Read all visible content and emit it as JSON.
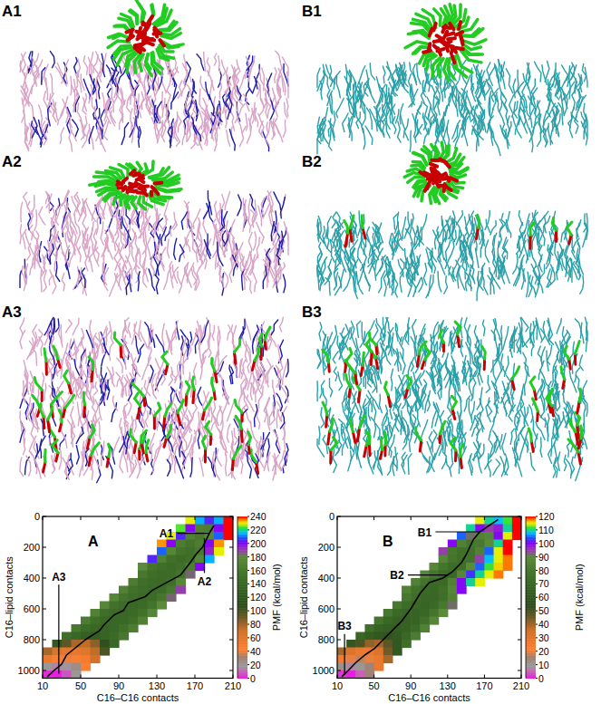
{
  "panels": [
    {
      "label": "A1"
    },
    {
      "label": "A2"
    },
    {
      "label": "A3"
    },
    {
      "label": "B1"
    },
    {
      "label": "B2"
    },
    {
      "label": "B3"
    }
  ],
  "chart_data": [
    {
      "type": "heatmap",
      "title": "A",
      "x_label": "C16–C16 contacts",
      "y_label": "C16–lipid contacts",
      "xlim": [
        10,
        210
      ],
      "ylim": [
        1050,
        0
      ],
      "xticks": [
        10,
        50,
        90,
        130,
        170,
        210
      ],
      "yticks": [
        0,
        200,
        400,
        600,
        800,
        1000
      ],
      "grid": false,
      "x_bins": [
        10,
        20,
        30,
        40,
        50,
        60,
        70,
        80,
        90,
        100,
        110,
        120,
        130,
        140,
        150,
        160,
        170,
        180,
        190,
        200,
        210
      ],
      "y_bins": [
        0,
        50,
        100,
        150,
        200,
        250,
        300,
        350,
        400,
        450,
        500,
        550,
        600,
        650,
        700,
        750,
        800,
        850,
        900,
        950,
        1000,
        1050
      ],
      "cells": [
        [
          null,
          null,
          null,
          null,
          null,
          null,
          null,
          null,
          null,
          null,
          null,
          null,
          null,
          null,
          null,
          230,
          215,
          205,
          215,
          240
        ],
        [
          null,
          null,
          null,
          null,
          null,
          null,
          null,
          null,
          null,
          null,
          null,
          null,
          null,
          null,
          225,
          200,
          170,
          165,
          200,
          240
        ],
        [
          null,
          null,
          null,
          null,
          null,
          null,
          null,
          null,
          null,
          null,
          null,
          null,
          null,
          230,
          205,
          170,
          160,
          175,
          210,
          240
        ],
        [
          null,
          null,
          null,
          null,
          null,
          null,
          null,
          null,
          null,
          null,
          null,
          null,
          235,
          200,
          165,
          155,
          165,
          200,
          235,
          null
        ],
        [
          null,
          null,
          null,
          null,
          null,
          null,
          null,
          null,
          null,
          null,
          null,
          null,
          210,
          175,
          155,
          150,
          160,
          195,
          230,
          null
        ],
        [
          null,
          null,
          null,
          null,
          null,
          null,
          null,
          null,
          null,
          null,
          null,
          205,
          170,
          150,
          145,
          150,
          175,
          215,
          null,
          null
        ],
        [
          null,
          null,
          null,
          null,
          null,
          null,
          null,
          null,
          null,
          null,
          180,
          155,
          148,
          145,
          148,
          165,
          200,
          null,
          null,
          null
        ],
        [
          null,
          null,
          null,
          null,
          null,
          null,
          null,
          null,
          null,
          null,
          160,
          148,
          145,
          146,
          155,
          185,
          null,
          null,
          null,
          null
        ],
        [
          null,
          null,
          null,
          null,
          null,
          null,
          null,
          null,
          null,
          165,
          150,
          145,
          144,
          150,
          175,
          null,
          null,
          null,
          null,
          null
        ],
        [
          null,
          null,
          null,
          null,
          null,
          null,
          null,
          null,
          170,
          152,
          146,
          144,
          146,
          160,
          190,
          null,
          null,
          null,
          null,
          null
        ],
        [
          null,
          null,
          null,
          null,
          null,
          null,
          null,
          175,
          155,
          147,
          144,
          146,
          158,
          185,
          null,
          null,
          null,
          null,
          null,
          null
        ],
        [
          null,
          null,
          null,
          null,
          null,
          null,
          175,
          152,
          146,
          143,
          145,
          155,
          180,
          null,
          null,
          null,
          null,
          null,
          null,
          null
        ],
        [
          null,
          null,
          null,
          null,
          null,
          170,
          150,
          145,
          142,
          144,
          152,
          175,
          null,
          null,
          null,
          null,
          null,
          null,
          null,
          null
        ],
        [
          null,
          null,
          null,
          null,
          165,
          148,
          143,
          140,
          143,
          150,
          170,
          null,
          null,
          null,
          null,
          null,
          null,
          null,
          null,
          null
        ],
        [
          null,
          null,
          null,
          160,
          146,
          140,
          138,
          142,
          150,
          165,
          null,
          null,
          null,
          null,
          null,
          null,
          null,
          null,
          null,
          null
        ],
        [
          null,
          null,
          150,
          140,
          130,
          128,
          135,
          145,
          160,
          null,
          null,
          null,
          null,
          null,
          null,
          null,
          null,
          null,
          null,
          null
        ],
        [
          null,
          120,
          95,
          80,
          75,
          85,
          110,
          140,
          null,
          null,
          null,
          null,
          null,
          null,
          null,
          null,
          null,
          null,
          null,
          null
        ],
        [
          80,
          65,
          60,
          58,
          62,
          75,
          100,
          null,
          null,
          null,
          null,
          null,
          null,
          null,
          null,
          null,
          null,
          null,
          null,
          null
        ],
        [
          55,
          45,
          40,
          42,
          50,
          70,
          null,
          null,
          null,
          null,
          null,
          null,
          null,
          null,
          null,
          null,
          null,
          null,
          null,
          null
        ],
        [
          20,
          15,
          18,
          25,
          45,
          null,
          null,
          null,
          null,
          null,
          null,
          null,
          null,
          null,
          null,
          null,
          null,
          null,
          null,
          null
        ],
        [
          2,
          0,
          8,
          20,
          null,
          null,
          null,
          null,
          null,
          null,
          null,
          null,
          null,
          null,
          null,
          null,
          null,
          null,
          null,
          null
        ]
      ],
      "colorbar": {
        "label": "PMF (kcal/mol)",
        "range": [
          0,
          240
        ],
        "ticks": [
          0,
          20,
          40,
          60,
          80,
          100,
          120,
          140,
          160,
          180,
          200,
          220,
          240
        ]
      },
      "path": {
        "color": "#000000",
        "x": [
          190,
          186,
          182,
          178,
          172,
          165,
          155,
          140,
          125,
          118,
          100,
          95,
          85,
          75,
          70,
          55,
          45,
          35,
          30,
          22,
          15
        ],
        "y": [
          60,
          100,
          150,
          200,
          240,
          300,
          380,
          430,
          480,
          520,
          560,
          610,
          640,
          700,
          740,
          800,
          850,
          900,
          960,
          1000,
          1040
        ]
      },
      "annotations": [
        {
          "text": "A1",
          "x": 185,
          "y": 110,
          "text_x": 140,
          "text_y": 110
        },
        {
          "text": "A2",
          "x": 180,
          "y": 140,
          "text_x": 180,
          "text_y": 420
        },
        {
          "text": "A3",
          "x": 27,
          "y": 1020,
          "text_x": 27,
          "text_y": 390
        }
      ]
    },
    {
      "type": "heatmap",
      "title": "B",
      "x_label": "C16–C16 contacts",
      "y_label": "C16–lipid contacts",
      "xlim": [
        10,
        210
      ],
      "ylim": [
        1050,
        0
      ],
      "xticks": [
        10,
        50,
        90,
        130,
        170,
        210
      ],
      "yticks": [
        0,
        200,
        400,
        600,
        800,
        1000
      ],
      "grid": false,
      "x_bins": [
        10,
        20,
        30,
        40,
        50,
        60,
        70,
        80,
        90,
        100,
        110,
        120,
        130,
        140,
        150,
        160,
        170,
        180,
        190,
        200,
        210
      ],
      "y_bins": [
        0,
        50,
        100,
        150,
        200,
        250,
        300,
        350,
        400,
        450,
        500,
        550,
        600,
        650,
        700,
        750,
        800,
        850,
        900,
        950,
        1000,
        1050
      ],
      "cells": [
        [
          null,
          null,
          null,
          null,
          null,
          null,
          null,
          null,
          null,
          null,
          null,
          null,
          null,
          null,
          null,
          115,
          110,
          108,
          112,
          120
        ],
        [
          null,
          null,
          null,
          null,
          null,
          null,
          null,
          null,
          null,
          null,
          null,
          null,
          null,
          null,
          110,
          100,
          95,
          98,
          110,
          120
        ],
        [
          null,
          null,
          null,
          null,
          null,
          null,
          null,
          null,
          null,
          null,
          null,
          null,
          null,
          105,
          92,
          85,
          88,
          100,
          115,
          120
        ],
        [
          null,
          null,
          null,
          null,
          null,
          null,
          null,
          null,
          null,
          null,
          null,
          null,
          100,
          85,
          78,
          80,
          90,
          110,
          120,
          null
        ],
        [
          null,
          null,
          null,
          null,
          null,
          null,
          null,
          null,
          null,
          null,
          null,
          95,
          80,
          75,
          76,
          85,
          105,
          115,
          120,
          null
        ],
        [
          null,
          null,
          null,
          null,
          null,
          null,
          null,
          null,
          null,
          null,
          null,
          88,
          78,
          74,
          76,
          95,
          108,
          115,
          118,
          null
        ],
        [
          null,
          null,
          null,
          null,
          null,
          null,
          null,
          null,
          null,
          null,
          88,
          78,
          73,
          74,
          90,
          105,
          112,
          116,
          118,
          null
        ],
        [
          null,
          null,
          null,
          null,
          null,
          null,
          null,
          null,
          null,
          88,
          78,
          73,
          72,
          88,
          103,
          110,
          115,
          118,
          null,
          null
        ],
        [
          null,
          null,
          null,
          null,
          null,
          null,
          null,
          null,
          85,
          77,
          72,
          72,
          85,
          100,
          110,
          115,
          null,
          null,
          null,
          null
        ],
        [
          null,
          null,
          null,
          null,
          null,
          null,
          null,
          85,
          76,
          72,
          71,
          75,
          88,
          100,
          null,
          null,
          null,
          null,
          null,
          null
        ],
        [
          null,
          null,
          null,
          null,
          null,
          null,
          null,
          80,
          74,
          71,
          70,
          74,
          85,
          null,
          null,
          null,
          null,
          null,
          null,
          null
        ],
        [
          null,
          null,
          null,
          null,
          null,
          null,
          80,
          73,
          70,
          69,
          72,
          80,
          92,
          null,
          null,
          null,
          null,
          null,
          null,
          null
        ],
        [
          null,
          null,
          null,
          null,
          null,
          80,
          72,
          69,
          68,
          70,
          78,
          90,
          null,
          null,
          null,
          null,
          null,
          null,
          null,
          null
        ],
        [
          null,
          null,
          null,
          null,
          78,
          70,
          67,
          66,
          68,
          75,
          88,
          null,
          null,
          null,
          null,
          null,
          null,
          null,
          null,
          null
        ],
        [
          null,
          null,
          null,
          75,
          68,
          65,
          64,
          66,
          72,
          85,
          null,
          null,
          null,
          null,
          null,
          null,
          null,
          null,
          null,
          null
        ],
        [
          null,
          null,
          70,
          64,
          60,
          58,
          62,
          70,
          82,
          null,
          null,
          null,
          null,
          null,
          null,
          null,
          null,
          null,
          null,
          null
        ],
        [
          null,
          60,
          50,
          42,
          40,
          48,
          60,
          75,
          null,
          null,
          null,
          null,
          null,
          null,
          null,
          null,
          null,
          null,
          null,
          null
        ],
        [
          40,
          32,
          28,
          27,
          32,
          45,
          60,
          null,
          null,
          null,
          null,
          null,
          null,
          null,
          null,
          null,
          null,
          null,
          null,
          null
        ],
        [
          25,
          20,
          18,
          20,
          28,
          40,
          null,
          null,
          null,
          null,
          null,
          null,
          null,
          null,
          null,
          null,
          null,
          null,
          null,
          null
        ],
        [
          12,
          8,
          10,
          15,
          28,
          null,
          null,
          null,
          null,
          null,
          null,
          null,
          null,
          null,
          null,
          null,
          null,
          null,
          null,
          null
        ],
        [
          2,
          0,
          5,
          15,
          null,
          null,
          null,
          null,
          null,
          null,
          null,
          null,
          null,
          null,
          null,
          null,
          null,
          null,
          null,
          null
        ]
      ],
      "colorbar": {
        "label": "PMF (kcal/mol)",
        "range": [
          0,
          120
        ],
        "ticks": [
          0,
          10,
          20,
          30,
          40,
          50,
          60,
          70,
          80,
          90,
          100,
          110,
          120
        ]
      },
      "path": {
        "color": "#000000",
        "x": [
          185,
          175,
          165,
          158,
          150,
          145,
          135,
          125,
          110,
          100,
          90,
          80,
          70,
          60,
          50,
          40,
          30,
          22,
          15
        ],
        "y": [
          20,
          60,
          100,
          150,
          250,
          300,
          360,
          400,
          430,
          500,
          600,
          680,
          740,
          800,
          860,
          900,
          950,
          1000,
          1040
        ]
      },
      "annotations": [
        {
          "text": "B1",
          "x": 165,
          "y": 100,
          "text_x": 105,
          "text_y": 100
        },
        {
          "text": "B2",
          "x": 130,
          "y": 380,
          "text_x": 75,
          "text_y": 380
        },
        {
          "text": "B3",
          "x": 18,
          "y": 1030,
          "text_x": 18,
          "text_y": 710
        }
      ]
    }
  ]
}
